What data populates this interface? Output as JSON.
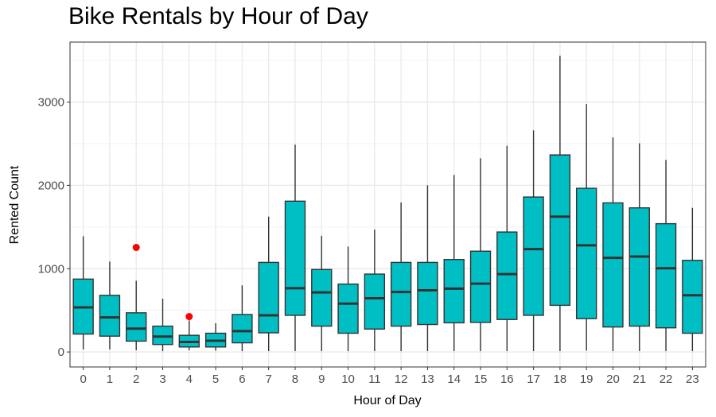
{
  "chart_data": {
    "type": "boxplot",
    "title": "Bike Rentals by Hour of Day",
    "xlabel": "Hour of Day",
    "ylabel": "Rented Count",
    "ylim": [
      -180,
      3720
    ],
    "yticks": [
      0,
      1000,
      2000,
      3000
    ],
    "grid": true,
    "colors": {
      "box_fill": "#00BFC4",
      "box_line": "#333333",
      "outlier": "#FF0000",
      "grid": "#EBEBEB",
      "panel_border": "#333333"
    },
    "categories": [
      "0",
      "1",
      "2",
      "3",
      "4",
      "5",
      "6",
      "7",
      "8",
      "9",
      "10",
      "11",
      "12",
      "13",
      "14",
      "15",
      "16",
      "17",
      "18",
      "19",
      "20",
      "21",
      "22",
      "23"
    ],
    "boxes": [
      {
        "hour": "0",
        "whisker_low": 30,
        "q1": 215,
        "median": 535,
        "q3": 875,
        "whisker_high": 1390,
        "outliers": []
      },
      {
        "hour": "1",
        "whisker_low": 30,
        "q1": 190,
        "median": 415,
        "q3": 680,
        "whisker_high": 1085,
        "outliers": []
      },
      {
        "hour": "2",
        "whisker_low": 20,
        "q1": 130,
        "median": 280,
        "q3": 470,
        "whisker_high": 855,
        "outliers": [
          1255
        ]
      },
      {
        "hour": "3",
        "whisker_low": 10,
        "q1": 90,
        "median": 185,
        "q3": 310,
        "whisker_high": 640,
        "outliers": []
      },
      {
        "hour": "4",
        "whisker_low": 20,
        "q1": 60,
        "median": 120,
        "q3": 200,
        "whisker_high": 380,
        "outliers": [
          425
        ]
      },
      {
        "hour": "5",
        "whisker_low": 15,
        "q1": 60,
        "median": 135,
        "q3": 225,
        "whisker_high": 345,
        "outliers": []
      },
      {
        "hour": "6",
        "whisker_low": 10,
        "q1": 110,
        "median": 250,
        "q3": 450,
        "whisker_high": 800,
        "outliers": []
      },
      {
        "hour": "7",
        "whisker_low": 10,
        "q1": 230,
        "median": 440,
        "q3": 1075,
        "whisker_high": 1625,
        "outliers": []
      },
      {
        "hour": "8",
        "whisker_low": 10,
        "q1": 440,
        "median": 765,
        "q3": 1810,
        "whisker_high": 2490,
        "outliers": []
      },
      {
        "hour": "9",
        "whisker_low": 10,
        "q1": 310,
        "median": 715,
        "q3": 990,
        "whisker_high": 1395,
        "outliers": []
      },
      {
        "hour": "10",
        "whisker_low": 10,
        "q1": 225,
        "median": 580,
        "q3": 815,
        "whisker_high": 1265,
        "outliers": []
      },
      {
        "hour": "11",
        "whisker_low": 10,
        "q1": 275,
        "median": 645,
        "q3": 935,
        "whisker_high": 1470,
        "outliers": []
      },
      {
        "hour": "12",
        "whisker_low": 10,
        "q1": 310,
        "median": 720,
        "q3": 1075,
        "whisker_high": 1795,
        "outliers": []
      },
      {
        "hour": "13",
        "whisker_low": 10,
        "q1": 330,
        "median": 740,
        "q3": 1075,
        "whisker_high": 2000,
        "outliers": []
      },
      {
        "hour": "14",
        "whisker_low": 10,
        "q1": 350,
        "median": 760,
        "q3": 1110,
        "whisker_high": 2125,
        "outliers": []
      },
      {
        "hour": "15",
        "whisker_low": 10,
        "q1": 355,
        "median": 820,
        "q3": 1210,
        "whisker_high": 2325,
        "outliers": []
      },
      {
        "hour": "16",
        "whisker_low": 10,
        "q1": 390,
        "median": 935,
        "q3": 1440,
        "whisker_high": 2475,
        "outliers": []
      },
      {
        "hour": "17",
        "whisker_low": 10,
        "q1": 440,
        "median": 1235,
        "q3": 1860,
        "whisker_high": 2660,
        "outliers": []
      },
      {
        "hour": "18",
        "whisker_low": 10,
        "q1": 560,
        "median": 1625,
        "q3": 2365,
        "whisker_high": 3555,
        "outliers": []
      },
      {
        "hour": "19",
        "whisker_low": 15,
        "q1": 400,
        "median": 1280,
        "q3": 1965,
        "whisker_high": 2975,
        "outliers": []
      },
      {
        "hour": "20",
        "whisker_low": 10,
        "q1": 300,
        "median": 1130,
        "q3": 1790,
        "whisker_high": 2575,
        "outliers": []
      },
      {
        "hour": "21",
        "whisker_low": 10,
        "q1": 310,
        "median": 1145,
        "q3": 1730,
        "whisker_high": 2505,
        "outliers": []
      },
      {
        "hour": "22",
        "whisker_low": 10,
        "q1": 290,
        "median": 1005,
        "q3": 1540,
        "whisker_high": 2305,
        "outliers": []
      },
      {
        "hour": "23",
        "whisker_low": 10,
        "q1": 225,
        "median": 680,
        "q3": 1100,
        "whisker_high": 1730,
        "outliers": []
      }
    ]
  }
}
